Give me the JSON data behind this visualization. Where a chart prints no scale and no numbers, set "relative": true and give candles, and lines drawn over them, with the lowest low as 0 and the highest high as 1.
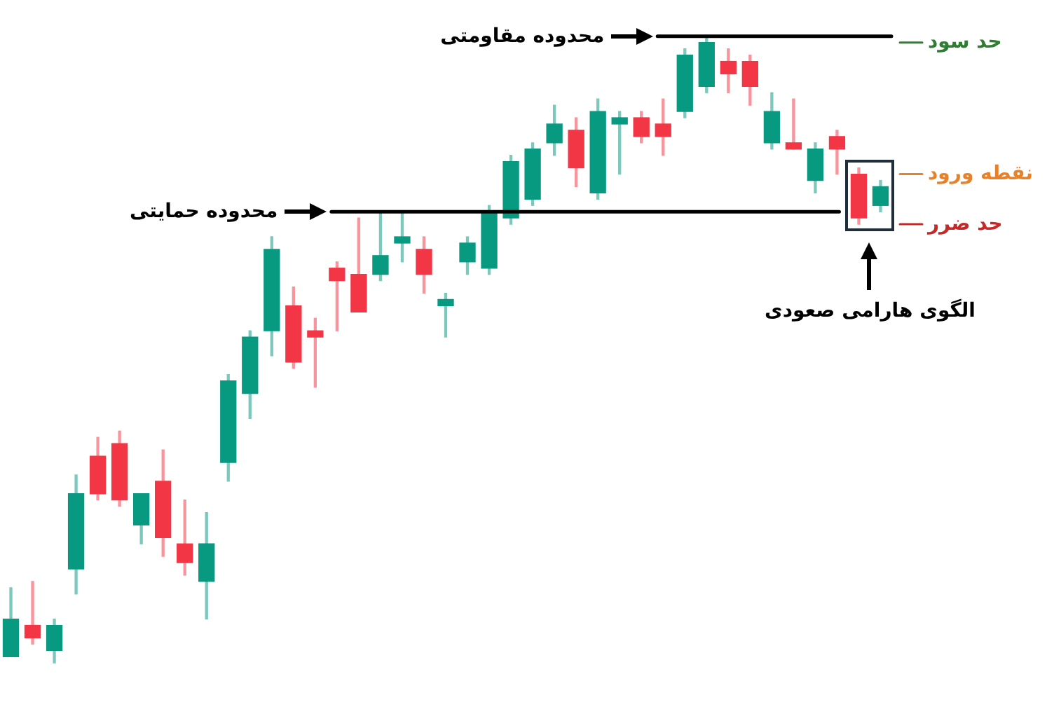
{
  "chart_data": {
    "type": "candlestick",
    "relative": true,
    "categories": [
      null,
      null,
      null,
      null,
      null,
      null,
      null,
      null,
      null,
      null,
      null,
      null,
      null,
      null,
      null,
      null,
      null,
      null,
      null,
      null,
      null,
      null,
      null,
      null,
      null,
      null,
      null,
      null,
      null,
      null,
      null,
      null,
      null,
      null,
      null,
      null,
      null,
      null,
      null,
      null,
      null
    ],
    "ohlc": [
      [
        0.01,
        0.12,
        0.01,
        0.07
      ],
      [
        0.06,
        0.13,
        0.03,
        0.04
      ],
      [
        0.02,
        0.07,
        0,
        0.06
      ],
      [
        0.15,
        0.3,
        0.11,
        0.27
      ],
      [
        0.33,
        0.36,
        0.26,
        0.27
      ],
      [
        0.35,
        0.37,
        0.25,
        0.26
      ],
      [
        0.22,
        0.27,
        0.19,
        0.27
      ],
      [
        0.29,
        0.34,
        0.17,
        0.2
      ],
      [
        0.19,
        0.26,
        0.14,
        0.16
      ],
      [
        0.13,
        0.24,
        0.07,
        0.19
      ],
      [
        0.32,
        0.46,
        0.29,
        0.45
      ],
      [
        0.43,
        0.53,
        0.39,
        0.52
      ],
      [
        0.53,
        0.68,
        0.49,
        0.66
      ],
      [
        0.57,
        0.6,
        0.47,
        0.48
      ],
      [
        0.53,
        0.55,
        0.44,
        0.52
      ],
      [
        0.63,
        0.64,
        0.53,
        0.61
      ],
      [
        0.62,
        0.71,
        0.56,
        0.56
      ],
      [
        0.62,
        0.72,
        0.61,
        0.65
      ],
      [
        0.67,
        0.72,
        0.64,
        0.68
      ],
      [
        0.66,
        0.68,
        0.59,
        0.62
      ],
      [
        0.57,
        0.59,
        0.52,
        0.58
      ],
      [
        0.64,
        0.68,
        0.62,
        0.67
      ],
      [
        0.63,
        0.73,
        0.62,
        0.72
      ],
      [
        0.71,
        0.81,
        0.7,
        0.8
      ],
      [
        0.74,
        0.83,
        0.73,
        0.82
      ],
      [
        0.83,
        0.89,
        0.81,
        0.86
      ],
      [
        0.85,
        0.87,
        0.76,
        0.79
      ],
      [
        0.75,
        0.9,
        0.74,
        0.88
      ],
      [
        0.86,
        0.88,
        0.78,
        0.87
      ],
      [
        0.87,
        0.88,
        0.83,
        0.84
      ],
      [
        0.86,
        0.9,
        0.81,
        0.84
      ],
      [
        0.88,
        0.98,
        0.87,
        0.97
      ],
      [
        0.92,
        1,
        0.91,
        0.99
      ],
      [
        0.96,
        0.98,
        0.91,
        0.94
      ],
      [
        0.96,
        0.97,
        0.89,
        0.92
      ],
      [
        0.83,
        0.91,
        0.82,
        0.88
      ],
      [
        0.83,
        0.9,
        0.82,
        0.82
      ],
      [
        0.77,
        0.83,
        0.75,
        0.82
      ],
      [
        0.84,
        0.85,
        0.78,
        0.82
      ],
      [
        0.78,
        0.79,
        0.7,
        0.71
      ],
      [
        0.73,
        0.77,
        0.72,
        0.76
      ]
    ],
    "colors": [
      "#089981",
      "#f23645",
      "#089981",
      "#089981",
      "#f23645",
      "#f23645",
      "#089981",
      "#f23645",
      "#f23645",
      "#089981",
      "#089981",
      "#089981",
      "#089981",
      "#f23645",
      "#f23645",
      "#f23645",
      "#f23645",
      "#089981",
      "#089981",
      "#f23645",
      "#089981",
      "#089981",
      "#089981",
      "#089981",
      "#089981",
      "#089981",
      "#f23645",
      "#089981",
      "#089981",
      "#f23645",
      "#f23645",
      "#089981",
      "#089981",
      "#f23645",
      "#f23645",
      "#089981",
      "#f23645",
      "#089981",
      "#f23645",
      "#f23645",
      "#089981"
    ],
    "ref_lines": [
      {
        "axis": "y",
        "value": 1.0,
        "label": "محدوده مقاومتی"
      },
      {
        "axis": "y",
        "value": 0.72,
        "label": "محدوده حمایتی"
      },
      {
        "axis": "y",
        "value": 0.99,
        "label": "حد سود",
        "color": "#2e7d32"
      },
      {
        "axis": "y",
        "value": 0.78,
        "label": "نقطه ورود",
        "color": "#e8822a"
      },
      {
        "axis": "y",
        "value": 0.7,
        "label": "حد ضرر",
        "color": "#c62828"
      }
    ],
    "annotations": [
      "الگوی هارامی صعودی"
    ]
  }
}
